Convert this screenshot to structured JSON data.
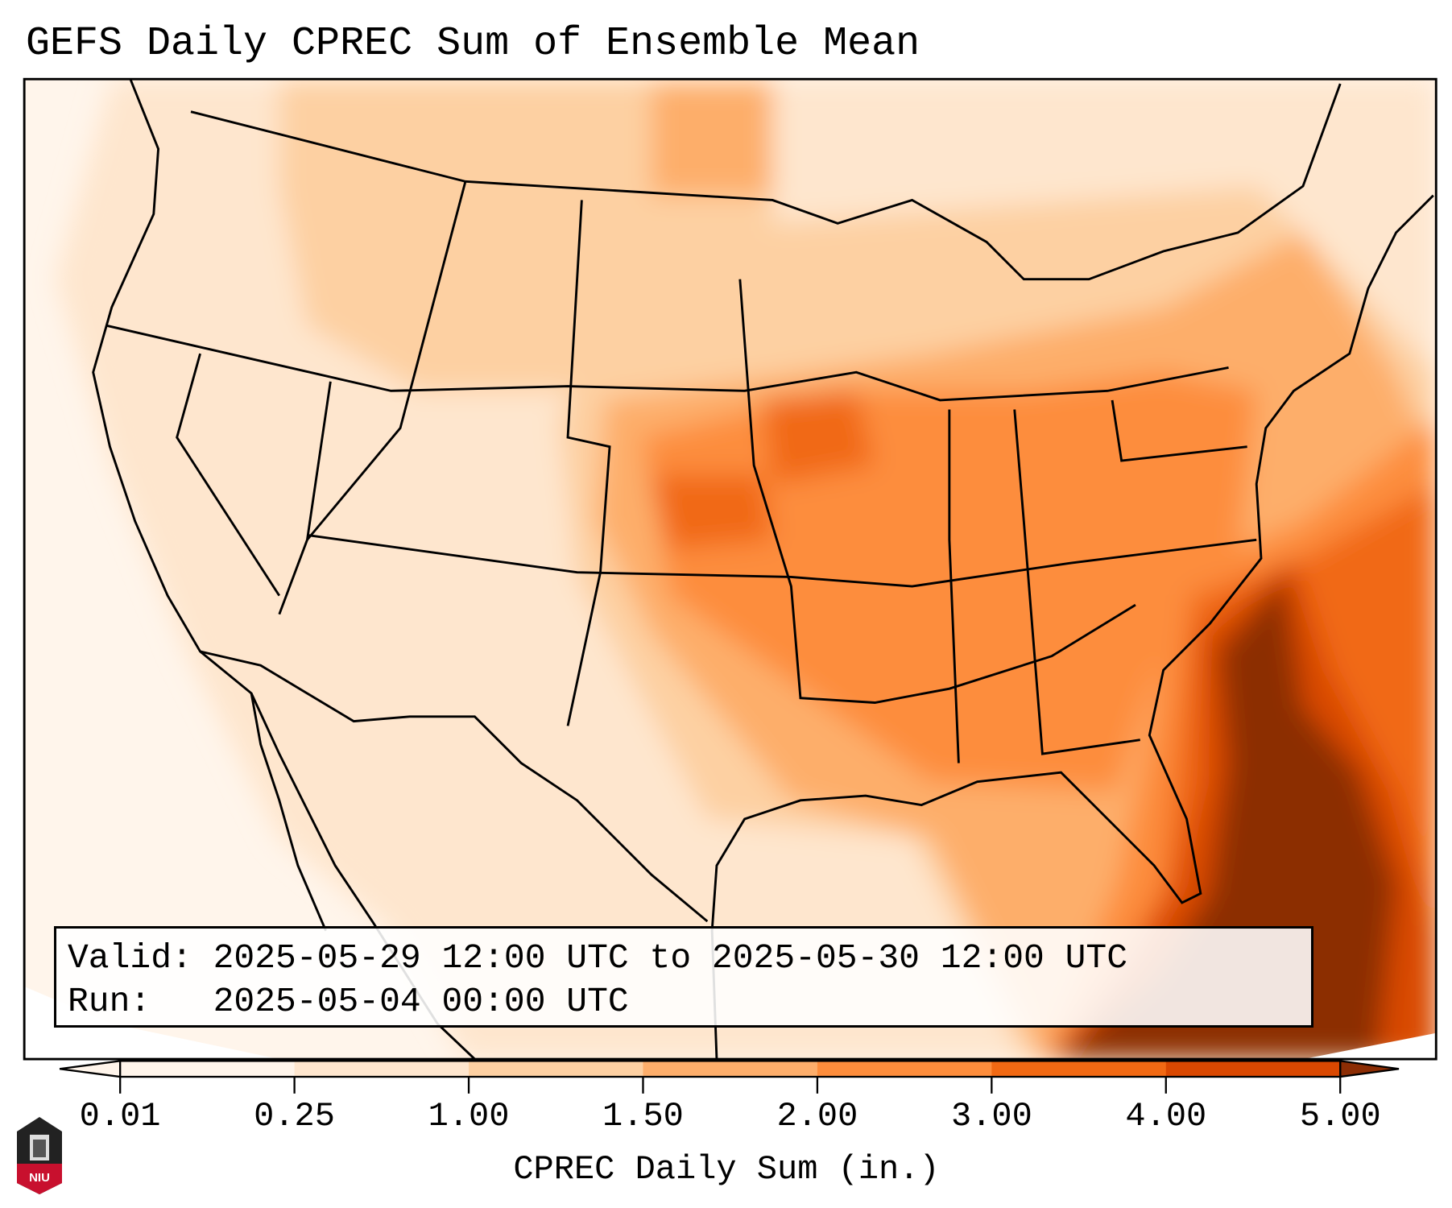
{
  "title": "GEFS Daily CPREC Sum of Ensemble Mean",
  "info": {
    "valid_line": "Valid: 2025-05-29 12:00 UTC to 2025-05-30 12:00 UTC",
    "run_line": "Run:   2025-05-04 00:00 UTC"
  },
  "colorbar": {
    "label": "CPREC Daily Sum (in.)",
    "ticks": [
      "0.01",
      "0.25",
      "1.00",
      "1.50",
      "2.00",
      "3.00",
      "4.00",
      "5.00"
    ],
    "colors": [
      "#fff5eb",
      "#fee6ce",
      "#fdd0a2",
      "#fdae6b",
      "#fd8d3c",
      "#f16913",
      "#d94801",
      "#8c2d04"
    ]
  },
  "logo": {
    "text": "NIU"
  }
}
